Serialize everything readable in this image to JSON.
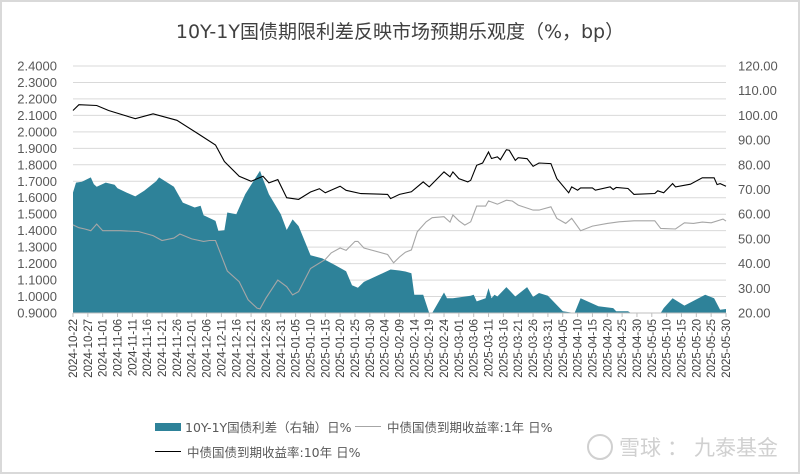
{
  "chart_data": {
    "type": "line",
    "title": "10Y-1Y国债期限利差反映市场预期乐观度（%，bp）",
    "y_left": {
      "range": [
        0.9,
        2.4
      ],
      "step": 0.1,
      "tick_labels": [
        "0.9000",
        "1.0000",
        "1.1000",
        "1.2000",
        "1.3000",
        "1.4000",
        "1.5000",
        "1.6000",
        "1.7000",
        "1.8000",
        "1.9000",
        "2.0000",
        "2.1000",
        "2.2000",
        "2.3000",
        "2.4000"
      ]
    },
    "y_right": {
      "range": [
        20,
        120
      ],
      "step": 10,
      "tick_labels": [
        "20.00",
        "30.00",
        "40.00",
        "50.00",
        "60.00",
        "70.00",
        "80.00",
        "90.00",
        "100.00",
        "110.00",
        "120.00"
      ]
    },
    "x_range": [
      "2024-10-22",
      "2025-05-30"
    ],
    "x_tick_labels": [
      "2024-10-22",
      "2024-10-27",
      "2024-11-01",
      "2024-11-06",
      "2024-11-11",
      "2024-11-16",
      "2024-11-21",
      "2024-11-26",
      "2024-12-01",
      "2024-12-06",
      "2024-12-11",
      "2024-12-16",
      "2024-12-21",
      "2024-12-26",
      "2024-12-31",
      "2025-01-05",
      "2025-01-10",
      "2025-01-15",
      "2025-01-20",
      "2025-01-25",
      "2025-01-30",
      "2025-02-04",
      "2025-02-09",
      "2025-02-14",
      "2025-02-19",
      "2025-02-24",
      "2025-03-01",
      "2025-03-06",
      "2025-03-11",
      "2025-03-16",
      "2025-03-21",
      "2025-03-26",
      "2025-03-31",
      "2025-04-05",
      "2025-04-10",
      "2025-04-15",
      "2025-04-20",
      "2025-04-25",
      "2025-04-30",
      "2025-05-05",
      "2025-05-10",
      "2025-05-15",
      "2025-05-20",
      "2025-05-25",
      "2025-05-30"
    ],
    "grid": true,
    "legend_placement": "bottom",
    "series": [
      {
        "name": "10Y-1Y国债利差（右轴）日%",
        "kind": "area",
        "axis": "right",
        "color": "#2e8299",
        "points": [
          [
            "2024-10-22",
            68.8
          ],
          [
            "2024-10-23",
            72.8
          ],
          [
            "2024-10-25",
            73.1
          ],
          [
            "2024-10-28",
            74.9
          ],
          [
            "2024-10-29",
            72.2
          ],
          [
            "2024-10-30",
            71.1
          ],
          [
            "2024-11-02",
            72.8
          ],
          [
            "2024-11-05",
            71.9
          ],
          [
            "2024-11-06",
            70.5
          ],
          [
            "2024-11-09",
            68.8
          ],
          [
            "2024-11-12",
            67.2
          ],
          [
            "2024-11-15",
            69.5
          ],
          [
            "2024-11-19",
            73.3
          ],
          [
            "2024-11-20",
            74.9
          ],
          [
            "2024-11-25",
            71.1
          ],
          [
            "2024-11-28",
            64.7
          ],
          [
            "2024-12-02",
            62.7
          ],
          [
            "2024-12-04",
            63.4
          ],
          [
            "2024-12-05",
            59.6
          ],
          [
            "2024-12-09",
            57.3
          ],
          [
            "2024-12-10",
            53.2
          ],
          [
            "2024-12-12",
            53.5
          ],
          [
            "2024-12-13",
            60.7
          ],
          [
            "2024-12-16",
            60.0
          ],
          [
            "2024-12-19",
            68.1
          ],
          [
            "2024-12-24",
            77.6
          ],
          [
            "2024-12-25",
            74.2
          ],
          [
            "2024-12-27",
            68.1
          ],
          [
            "2024-12-31",
            60.0
          ],
          [
            "2025-01-02",
            53.6
          ],
          [
            "2025-01-04",
            57.9
          ],
          [
            "2025-01-06",
            55.2
          ],
          [
            "2025-01-10",
            43.4
          ],
          [
            "2025-01-14",
            42.1
          ],
          [
            "2025-01-18",
            39.6
          ],
          [
            "2025-01-22",
            36.9
          ],
          [
            "2025-01-24",
            31.2
          ],
          [
            "2025-01-26",
            30.2
          ],
          [
            "2025-01-28",
            32.6
          ],
          [
            "2025-02-06",
            37.6
          ],
          [
            "2025-02-09",
            37.2
          ],
          [
            "2025-02-11",
            36.8
          ],
          [
            "2025-02-13",
            36.1
          ],
          [
            "2025-02-14",
            27.4
          ],
          [
            "2025-02-17",
            27.4
          ],
          [
            "2025-02-19",
            20.0
          ],
          [
            "2025-02-20",
            20.0
          ],
          [
            "2025-02-24",
            28.3
          ],
          [
            "2025-02-25",
            26.0
          ],
          [
            "2025-02-27",
            26.0
          ],
          [
            "2025-03-05",
            27.0
          ],
          [
            "2025-03-06",
            27.4
          ],
          [
            "2025-03-07",
            24.7
          ],
          [
            "2025-03-10",
            26.0
          ],
          [
            "2025-03-11",
            30.1
          ],
          [
            "2025-03-12",
            26.0
          ],
          [
            "2025-03-13",
            27.4
          ],
          [
            "2025-03-14",
            26.7
          ],
          [
            "2025-03-17",
            30.5
          ],
          [
            "2025-03-20",
            26.7
          ],
          [
            "2025-03-24",
            30.5
          ],
          [
            "2025-03-26",
            26.5
          ],
          [
            "2025-03-28",
            28.1
          ],
          [
            "2025-03-31",
            27.0
          ],
          [
            "2025-04-05",
            20.7
          ],
          [
            "2025-04-09",
            20.0
          ],
          [
            "2025-04-11",
            26.0
          ],
          [
            "2025-04-17",
            22.7
          ],
          [
            "2025-04-22",
            22.0
          ],
          [
            "2025-04-23",
            20.7
          ],
          [
            "2025-04-27",
            20.7
          ],
          [
            "2025-04-28",
            20.0
          ],
          [
            "2025-05-08",
            20.0
          ],
          [
            "2025-05-09",
            22.0
          ],
          [
            "2025-05-12",
            26.0
          ],
          [
            "2025-05-16",
            23.0
          ],
          [
            "2025-05-23",
            27.4
          ],
          [
            "2025-05-26",
            26.0
          ],
          [
            "2025-05-28",
            21.3
          ],
          [
            "2025-05-30",
            21.6
          ]
        ]
      },
      {
        "name": "中债国债到期收益率:1年 日%",
        "kind": "line",
        "axis": "left",
        "color": "#a6a6a6",
        "points": [
          [
            "2024-10-22",
            1.435
          ],
          [
            "2024-10-24",
            1.418
          ],
          [
            "2024-10-26",
            1.41
          ],
          [
            "2024-10-28",
            1.4
          ],
          [
            "2024-10-30",
            1.44
          ],
          [
            "2024-11-01",
            1.4
          ],
          [
            "2024-11-07",
            1.4
          ],
          [
            "2024-11-13",
            1.395
          ],
          [
            "2024-11-18",
            1.37
          ],
          [
            "2024-11-21",
            1.34
          ],
          [
            "2024-11-25",
            1.355
          ],
          [
            "2024-11-27",
            1.38
          ],
          [
            "2024-12-01",
            1.35
          ],
          [
            "2024-12-05",
            1.335
          ],
          [
            "2024-12-07",
            1.34
          ],
          [
            "2024-12-09",
            1.34
          ],
          [
            "2024-12-13",
            1.155
          ],
          [
            "2024-12-17",
            1.09
          ],
          [
            "2024-12-20",
            0.98
          ],
          [
            "2024-12-23",
            0.93
          ],
          [
            "2024-12-24",
            0.925
          ],
          [
            "2024-12-26",
            0.99
          ],
          [
            "2024-12-30",
            1.1
          ],
          [
            "2025-01-02",
            1.06
          ],
          [
            "2025-01-04",
            1.01
          ],
          [
            "2025-01-06",
            1.03
          ],
          [
            "2025-01-10",
            1.17
          ],
          [
            "2025-01-15",
            1.225
          ],
          [
            "2025-01-17",
            1.265
          ],
          [
            "2025-01-20",
            1.295
          ],
          [
            "2025-01-22",
            1.28
          ],
          [
            "2025-01-25",
            1.335
          ],
          [
            "2025-01-26",
            1.335
          ],
          [
            "2025-01-28",
            1.295
          ],
          [
            "2025-02-05",
            1.255
          ],
          [
            "2025-02-07",
            1.205
          ],
          [
            "2025-02-09",
            1.24
          ],
          [
            "2025-02-11",
            1.269
          ],
          [
            "2025-02-13",
            1.283
          ],
          [
            "2025-02-15",
            1.394
          ],
          [
            "2025-02-18",
            1.454
          ],
          [
            "2025-02-20",
            1.479
          ],
          [
            "2025-02-24",
            1.485
          ],
          [
            "2025-02-26",
            1.452
          ],
          [
            "2025-02-27",
            1.495
          ],
          [
            "2025-03-01",
            1.46
          ],
          [
            "2025-03-03",
            1.434
          ],
          [
            "2025-03-05",
            1.454
          ],
          [
            "2025-03-07",
            1.549
          ],
          [
            "2025-03-10",
            1.549
          ],
          [
            "2025-03-11",
            1.581
          ],
          [
            "2025-03-14",
            1.561
          ],
          [
            "2025-03-17",
            1.585
          ],
          [
            "2025-03-19",
            1.58
          ],
          [
            "2025-03-21",
            1.555
          ],
          [
            "2025-03-26",
            1.525
          ],
          [
            "2025-03-28",
            1.525
          ],
          [
            "2025-04-01",
            1.545
          ],
          [
            "2025-04-03",
            1.475
          ],
          [
            "2025-04-06",
            1.444
          ],
          [
            "2025-04-08",
            1.475
          ],
          [
            "2025-04-11",
            1.4
          ],
          [
            "2025-04-15",
            1.428
          ],
          [
            "2025-04-20",
            1.444
          ],
          [
            "2025-04-24",
            1.454
          ],
          [
            "2025-04-29",
            1.46
          ],
          [
            "2025-05-06",
            1.46
          ],
          [
            "2025-05-08",
            1.414
          ],
          [
            "2025-05-13",
            1.41
          ],
          [
            "2025-05-16",
            1.448
          ],
          [
            "2025-05-19",
            1.444
          ],
          [
            "2025-05-22",
            1.452
          ],
          [
            "2025-05-25",
            1.448
          ],
          [
            "2025-05-29",
            1.47
          ],
          [
            "2025-05-30",
            1.458
          ]
        ]
      },
      {
        "name": "中债国债到期收益率:10年 日%",
        "kind": "line",
        "axis": "left",
        "color": "#000000",
        "points": [
          [
            "2024-10-22",
            2.13
          ],
          [
            "2024-10-24",
            2.165
          ],
          [
            "2024-10-30",
            2.16
          ],
          [
            "2024-11-03",
            2.13
          ],
          [
            "2024-11-12",
            2.08
          ],
          [
            "2024-11-18",
            2.11
          ],
          [
            "2024-11-26",
            2.07
          ],
          [
            "2024-12-03",
            1.99
          ],
          [
            "2024-12-09",
            1.92
          ],
          [
            "2024-12-12",
            1.82
          ],
          [
            "2024-12-17",
            1.73
          ],
          [
            "2024-12-21",
            1.7
          ],
          [
            "2024-12-25",
            1.73
          ],
          [
            "2024-12-27",
            1.69
          ],
          [
            "2024-12-30",
            1.71
          ],
          [
            "2025-01-02",
            1.6
          ],
          [
            "2025-01-06",
            1.59
          ],
          [
            "2025-01-10",
            1.635
          ],
          [
            "2025-01-13",
            1.655
          ],
          [
            "2025-01-15",
            1.63
          ],
          [
            "2025-01-20",
            1.67
          ],
          [
            "2025-01-22",
            1.645
          ],
          [
            "2025-01-27",
            1.625
          ],
          [
            "2025-02-05",
            1.62
          ],
          [
            "2025-02-06",
            1.595
          ],
          [
            "2025-02-09",
            1.62
          ],
          [
            "2025-02-13",
            1.636
          ],
          [
            "2025-02-17",
            1.696
          ],
          [
            "2025-02-19",
            1.666
          ],
          [
            "2025-02-24",
            1.757
          ],
          [
            "2025-02-26",
            1.727
          ],
          [
            "2025-02-27",
            1.757
          ],
          [
            "2025-03-01",
            1.716
          ],
          [
            "2025-03-04",
            1.696
          ],
          [
            "2025-03-05",
            1.706
          ],
          [
            "2025-03-07",
            1.797
          ],
          [
            "2025-03-09",
            1.811
          ],
          [
            "2025-03-11",
            1.878
          ],
          [
            "2025-03-12",
            1.838
          ],
          [
            "2025-03-14",
            1.848
          ],
          [
            "2025-03-15",
            1.831
          ],
          [
            "2025-03-17",
            1.892
          ],
          [
            "2025-03-18",
            1.888
          ],
          [
            "2025-03-20",
            1.827
          ],
          [
            "2025-03-21",
            1.843
          ],
          [
            "2025-03-24",
            1.837
          ],
          [
            "2025-03-26",
            1.791
          ],
          [
            "2025-03-28",
            1.811
          ],
          [
            "2025-04-01",
            1.807
          ],
          [
            "2025-04-03",
            1.716
          ],
          [
            "2025-04-07",
            1.63
          ],
          [
            "2025-04-08",
            1.666
          ],
          [
            "2025-04-10",
            1.646
          ],
          [
            "2025-04-11",
            1.66
          ],
          [
            "2025-04-15",
            1.66
          ],
          [
            "2025-04-16",
            1.646
          ],
          [
            "2025-04-21",
            1.666
          ],
          [
            "2025-04-22",
            1.65
          ],
          [
            "2025-04-23",
            1.662
          ],
          [
            "2025-04-27",
            1.656
          ],
          [
            "2025-04-29",
            1.62
          ],
          [
            "2025-05-06",
            1.626
          ],
          [
            "2025-05-07",
            1.642
          ],
          [
            "2025-05-09",
            1.63
          ],
          [
            "2025-05-12",
            1.686
          ],
          [
            "2025-05-13",
            1.666
          ],
          [
            "2025-05-18",
            1.682
          ],
          [
            "2025-05-22",
            1.721
          ],
          [
            "2025-05-26",
            1.721
          ],
          [
            "2025-05-27",
            1.68
          ],
          [
            "2025-05-28",
            1.686
          ],
          [
            "2025-05-30",
            1.67
          ]
        ]
      }
    ]
  },
  "watermark": {
    "site": "雪球",
    "separator": "：",
    "author": "九泰基金"
  }
}
